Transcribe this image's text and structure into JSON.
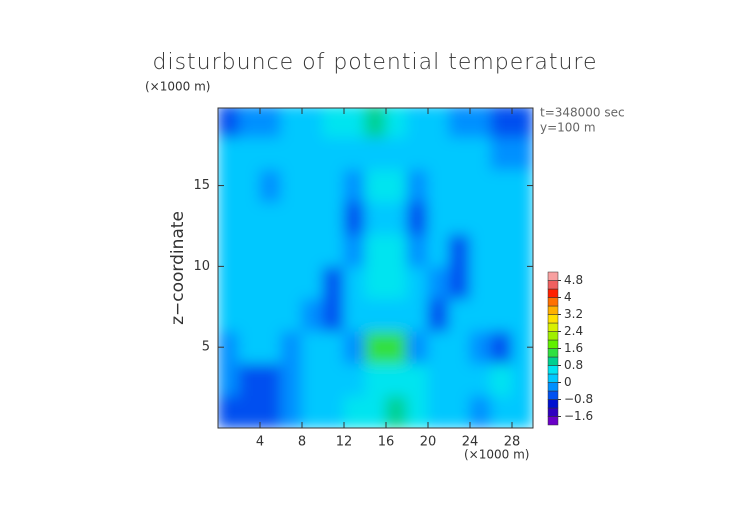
{
  "chart_data": {
    "type": "contour",
    "title": "disturbunce of potential temperature",
    "y_unit_label": "(×1000 m)",
    "x_unit_label": "(×1000 m)",
    "ylabel": "z−coordinate",
    "annotations": [
      "t=348000 sec",
      "y=100 m"
    ],
    "xlim": [
      0,
      30
    ],
    "ylim": [
      0,
      19.8
    ],
    "xticks": [
      4,
      8,
      12,
      16,
      20,
      24,
      28
    ],
    "yticks": [
      5,
      10,
      15
    ],
    "x": [
      1,
      3,
      5,
      7,
      9,
      11,
      13,
      15,
      17,
      19,
      21,
      23,
      25,
      27,
      29
    ],
    "y": [
      1,
      3,
      5,
      7,
      9,
      11,
      13,
      15,
      17,
      19
    ],
    "z": [
      [
        -0.6,
        -0.8,
        -0.8,
        -0.4,
        0.2,
        0.2,
        0.4,
        0.6,
        0.8,
        0.6,
        0.2,
        0,
        -0.2,
        0.2,
        0.2
      ],
      [
        -0.4,
        -0.8,
        -0.8,
        -0.4,
        0,
        0.2,
        0.2,
        0.6,
        0.4,
        0.4,
        0.2,
        0,
        0.2,
        0.4,
        0
      ],
      [
        -0.2,
        0,
        0.2,
        -0.4,
        0.2,
        0,
        -0.4,
        1.2,
        1.4,
        -0.4,
        0.2,
        0,
        -0.2,
        -0.6,
        0
      ],
      [
        0,
        0.2,
        0,
        0.2,
        -0.4,
        -0.6,
        0,
        0.2,
        0.2,
        0,
        -0.8,
        0,
        0.2,
        0,
        0.2
      ],
      [
        0.2,
        0,
        0.2,
        0.2,
        0,
        -0.6,
        0,
        0.4,
        0.4,
        0,
        -0.2,
        -0.8,
        0,
        0.2,
        0.2
      ],
      [
        0.2,
        0,
        0.2,
        0,
        0.2,
        0,
        -0.4,
        0.4,
        0.4,
        -0.4,
        0,
        -0.6,
        0,
        0.2,
        0
      ],
      [
        0,
        0.2,
        0,
        0.2,
        0,
        0,
        -0.6,
        0.2,
        0.2,
        -0.6,
        0,
        0,
        0.2,
        0,
        0.2
      ],
      [
        0.2,
        0,
        -0.4,
        0,
        0.2,
        0.2,
        -0.2,
        0.4,
        0.4,
        -0.4,
        0,
        0.2,
        0,
        0.2,
        0
      ],
      [
        0,
        0.2,
        0,
        0,
        0.2,
        0,
        0.2,
        0.2,
        0.2,
        0.2,
        0,
        0,
        0.2,
        -0.2,
        -0.4
      ],
      [
        -0.6,
        -0.4,
        -0.2,
        0,
        0.2,
        0.4,
        0.6,
        0.8,
        0.6,
        0.2,
        0,
        -0.2,
        -0.4,
        -0.6,
        -0.8
      ]
    ],
    "colorbar": {
      "levels": [
        -2,
        -1.6,
        -1.2,
        -0.8,
        -0.4,
        0,
        0.4,
        0.8,
        1.2,
        1.6,
        2,
        2.4,
        2.8,
        3.2,
        3.6,
        4,
        4.4,
        4.8,
        5.2
      ],
      "colors": [
        "#6a00c8",
        "#3000c0",
        "#0010d0",
        "#0050f0",
        "#0090ff",
        "#00c8ff",
        "#00e4f0",
        "#00d090",
        "#30e040",
        "#60f000",
        "#a0f000",
        "#d8f000",
        "#ffe000",
        "#ffb000",
        "#ff7000",
        "#ff2000",
        "#f06060",
        "#f8a0a0"
      ],
      "ticks": [
        {
          "value": -1.6,
          "label": "−1.6"
        },
        {
          "value": -0.8,
          "label": "−0.8"
        },
        0,
        0.8,
        1.6,
        2.4,
        3.2,
        4,
        4.8
      ]
    }
  }
}
